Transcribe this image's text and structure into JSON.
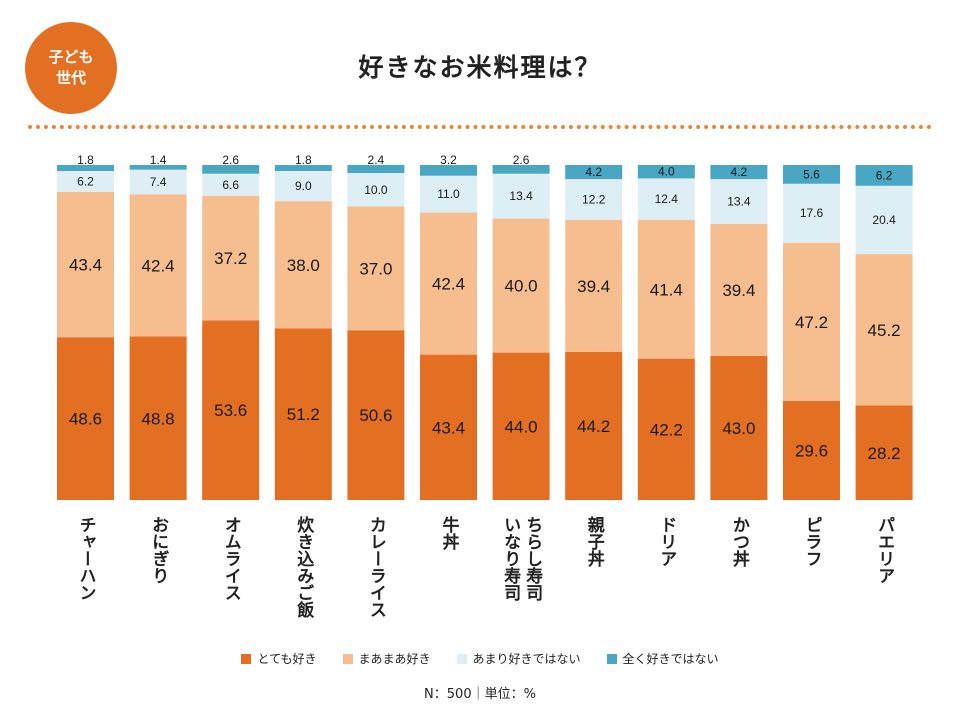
{
  "badge": {
    "line1": "子ども",
    "line2": "世代"
  },
  "title": "好きなお米料理は？",
  "legend": [
    {
      "label": "とても好き",
      "color": "#E37022"
    },
    {
      "label": "まあまあ好き",
      "color": "#F6BD8F"
    },
    {
      "label": "あまり好きではない",
      "color": "#DDEEF4"
    },
    {
      "label": "全く好きではない",
      "color": "#4AA7C3"
    }
  ],
  "footnote": "N：500｜単位：%",
  "chart_data": {
    "type": "bar",
    "stacked": true,
    "orientation": "vertical",
    "title": "好きなお米料理は？",
    "unit": "%",
    "ylim": [
      0,
      100
    ],
    "categories": [
      [
        "チャーハン"
      ],
      [
        "おにぎり"
      ],
      [
        "オムライス"
      ],
      [
        "炊き込みご飯"
      ],
      [
        "カレーライス"
      ],
      [
        "牛丼"
      ],
      [
        "ちらし寿司",
        "いなり寿司"
      ],
      [
        "親子丼"
      ],
      [
        "ドリア"
      ],
      [
        "かつ丼"
      ],
      [
        "ピラフ"
      ],
      [
        "パエリア"
      ]
    ],
    "series": [
      {
        "name": "とても好き",
        "color": "#E37022",
        "values": [
          48.6,
          48.8,
          53.6,
          51.2,
          50.6,
          43.4,
          44.0,
          44.2,
          42.2,
          43.0,
          29.6,
          28.2
        ],
        "labels": [
          "48.6",
          "48.8",
          "53.6",
          "51.2",
          "50.6",
          "43.4",
          "44.0",
          "44.2",
          "42.2",
          "43.0",
          "29.6",
          "28.2"
        ]
      },
      {
        "name": "まあまあ好き",
        "color": "#F6BD8F",
        "values": [
          43.4,
          42.4,
          37.2,
          38.0,
          37.0,
          42.4,
          40.0,
          39.4,
          41.4,
          39.4,
          47.2,
          45.2
        ],
        "labels": [
          "43.4",
          "42.4",
          "37.2",
          "38.0",
          "37.0",
          "42.4",
          "40.0",
          "39.4",
          "41.4",
          "39.4",
          "47.2",
          "45.2"
        ]
      },
      {
        "name": "あまり好きではない",
        "color": "#DDEEF4",
        "values": [
          6.2,
          7.4,
          6.6,
          9.0,
          10.0,
          11.0,
          13.4,
          12.2,
          12.4,
          13.4,
          17.6,
          20.4
        ],
        "labels": [
          "6.2",
          "7.4",
          "6.6",
          "9.0",
          "10.0",
          "11.0",
          "13.4",
          "12.2",
          "12.4",
          "13.4",
          "17.6",
          "20.4"
        ]
      },
      {
        "name": "全く好きではない",
        "color": "#4AA7C3",
        "values": [
          1.8,
          1.4,
          2.6,
          1.8,
          2.4,
          3.2,
          2.6,
          4.2,
          4.0,
          4.2,
          5.6,
          6.2
        ],
        "labels": [
          "1.8",
          "1.4",
          "2.6",
          "1.8",
          "2.4",
          "3.2",
          "2.6",
          "4.2",
          "4.0",
          "4.2",
          "5.6",
          "6.2"
        ]
      }
    ]
  }
}
